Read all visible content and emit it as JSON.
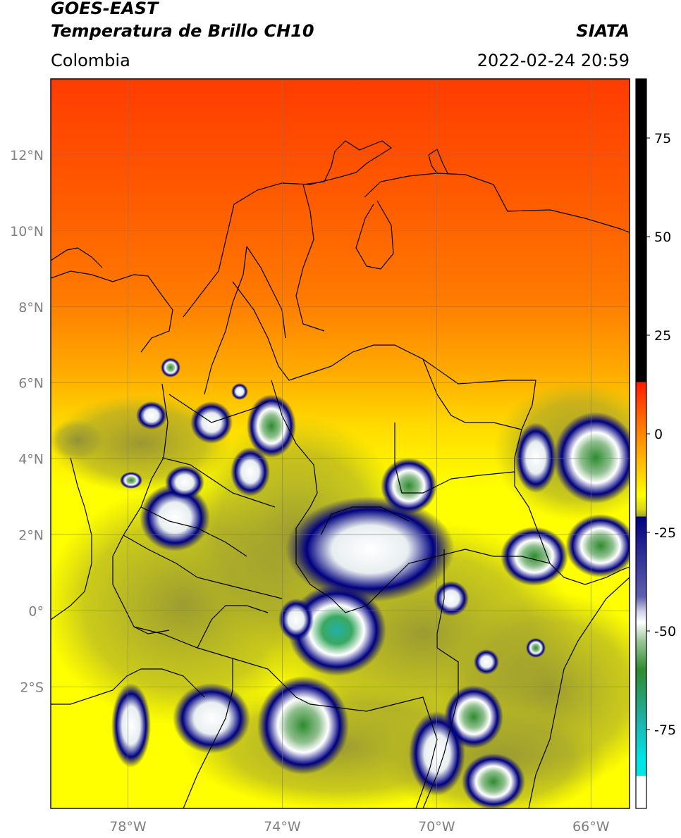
{
  "header": {
    "satellite": "GOES-EAST",
    "product": "Temperatura de Brillo CH10",
    "organization": "SIATA",
    "region": "Colombia",
    "timestamp": "2022-02-24 20:59"
  },
  "map": {
    "lon_range": [
      -80,
      -65
    ],
    "lat_range": [
      -5.2,
      14
    ],
    "lon_ticks": [
      {
        "value": -78,
        "label": "78°W"
      },
      {
        "value": -74,
        "label": "74°W"
      },
      {
        "value": -70,
        "label": "70°W"
      },
      {
        "value": -66,
        "label": "66°W"
      }
    ],
    "lat_ticks": [
      {
        "value": 12,
        "label": "12°N"
      },
      {
        "value": 10,
        "label": "10°N"
      },
      {
        "value": 8,
        "label": "8°N"
      },
      {
        "value": 6,
        "label": "6°N"
      },
      {
        "value": 4,
        "label": "4°N"
      },
      {
        "value": 2,
        "label": "2°N"
      },
      {
        "value": 0,
        "label": "0°"
      },
      {
        "value": -2,
        "label": "2°S"
      }
    ],
    "grid": true
  },
  "colorbar": {
    "range": [
      -95,
      90
    ],
    "ticks": [
      {
        "value": 75,
        "label": "75"
      },
      {
        "value": 50,
        "label": "50"
      },
      {
        "value": 25,
        "label": "25"
      },
      {
        "value": 0,
        "label": "0"
      },
      {
        "value": -25,
        "label": "-25"
      },
      {
        "value": -50,
        "label": "-50"
      },
      {
        "value": -75,
        "label": "-75"
      }
    ],
    "colors": {
      "black": "#000000",
      "red": "#ff1a00",
      "orange": "#ff8c00",
      "yellow": "#ffff00",
      "olive": "#9a9a2a",
      "navy": "#000080",
      "white": "#ffffff",
      "green": "#2e8b2e",
      "teal": "#20b2aa",
      "cyan": "#00e5e5"
    }
  }
}
